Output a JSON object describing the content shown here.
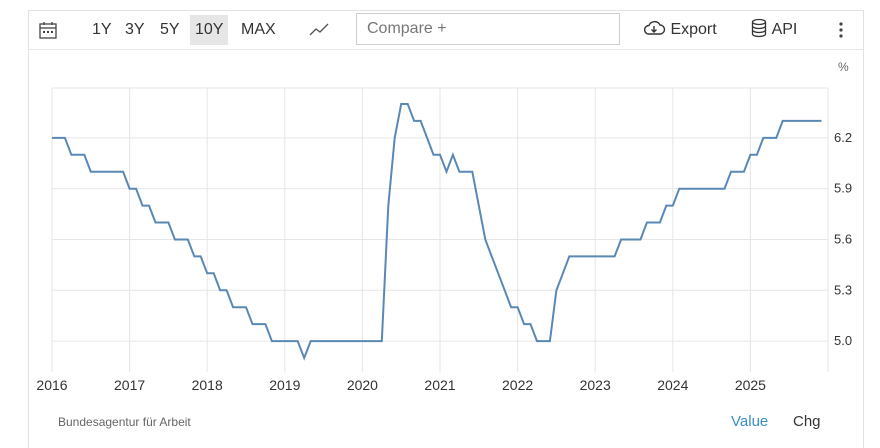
{
  "toolbar": {
    "ranges": [
      "1Y",
      "3Y",
      "5Y",
      "10Y",
      "MAX"
    ],
    "active_range": "10Y",
    "compare_placeholder": "Compare +",
    "export_label": "Export",
    "api_label": "API"
  },
  "unit": "%",
  "source": "Bundesagentur für Arbeit",
  "footer": {
    "value_label": "Value",
    "chg_label": "Chg"
  },
  "colors": {
    "line": "#5a88b5",
    "active_link": "#3a8dc8",
    "grid": "#e6e6e6"
  },
  "chart_data": {
    "type": "line",
    "title": "",
    "xlabel": "",
    "ylabel": "%",
    "x_ticks": [
      "2016",
      "2017",
      "2018",
      "2019",
      "2020",
      "2021",
      "2022",
      "2023",
      "2024",
      "2025"
    ],
    "y_ticks": [
      "5.0",
      "5.3",
      "5.6",
      "5.9",
      "6.2"
    ],
    "ylim": [
      4.85,
      6.4
    ],
    "grid": true,
    "series": [
      {
        "x": [
          "2016-01",
          "2016-03",
          "2016-04",
          "2016-06",
          "2016-07",
          "2016-08",
          "2016-09",
          "2016-10",
          "2016-11",
          "2016-12",
          "2017-01",
          "2017-02",
          "2017-03",
          "2017-04",
          "2017-05",
          "2017-06",
          "2017-07",
          "2017-08",
          "2017-09",
          "2017-10",
          "2017-11",
          "2017-12",
          "2018-01",
          "2018-02",
          "2018-03",
          "2018-04",
          "2018-05",
          "2018-06",
          "2018-07",
          "2018-08",
          "2018-09",
          "2018-10",
          "2018-11",
          "2018-12",
          "2019-01",
          "2019-02",
          "2019-03",
          "2019-04",
          "2019-05",
          "2019-06",
          "2019-07",
          "2019-08",
          "2019-09",
          "2019-10",
          "2019-11",
          "2019-12",
          "2020-01",
          "2020-02",
          "2020-03",
          "2020-04",
          "2020-05",
          "2020-06",
          "2020-07",
          "2020-08",
          "2020-09",
          "2020-10",
          "2020-11",
          "2020-12",
          "2021-01",
          "2021-02",
          "2021-03",
          "2021-04",
          "2021-05",
          "2021-06",
          "2021-07",
          "2021-08",
          "2021-09",
          "2021-10",
          "2021-11",
          "2021-12",
          "2022-01",
          "2022-02",
          "2022-03",
          "2022-04",
          "2022-05",
          "2022-06",
          "2022-07",
          "2022-08",
          "2022-09",
          "2022-10",
          "2022-11",
          "2022-12",
          "2023-01",
          "2023-02",
          "2023-03",
          "2023-04",
          "2023-05",
          "2023-06",
          "2023-07",
          "2023-08",
          "2023-09",
          "2023-10",
          "2023-11",
          "2023-12",
          "2024-01",
          "2024-02",
          "2024-03",
          "2024-04",
          "2024-05",
          "2024-06",
          "2024-07",
          "2024-08",
          "2024-09",
          "2024-10",
          "2024-11",
          "2024-12",
          "2025-01",
          "2025-02",
          "2025-03",
          "2025-04",
          "2025-05",
          "2025-06",
          "2025-07",
          "2025-08",
          "2025-09",
          "2025-10",
          "2025-11",
          "2025-12"
        ],
        "values": [
          6.2,
          6.2,
          6.1,
          6.1,
          6.0,
          6.0,
          6.0,
          6.0,
          6.0,
          6.0,
          5.9,
          5.9,
          5.8,
          5.8,
          5.7,
          5.7,
          5.7,
          5.6,
          5.6,
          5.6,
          5.5,
          5.5,
          5.4,
          5.4,
          5.3,
          5.3,
          5.2,
          5.2,
          5.2,
          5.1,
          5.1,
          5.1,
          5.0,
          5.0,
          5.0,
          5.0,
          5.0,
          4.9,
          5.0,
          5.0,
          5.0,
          5.0,
          5.0,
          5.0,
          5.0,
          5.0,
          5.0,
          5.0,
          5.0,
          5.0,
          5.8,
          6.2,
          6.4,
          6.4,
          6.3,
          6.3,
          6.2,
          6.1,
          6.1,
          6.0,
          6.1,
          6.0,
          6.0,
          6.0,
          5.8,
          5.6,
          5.5,
          5.4,
          5.3,
          5.2,
          5.2,
          5.1,
          5.1,
          5.0,
          5.0,
          5.0,
          5.3,
          5.4,
          5.5,
          5.5,
          5.5,
          5.5,
          5.5,
          5.5,
          5.5,
          5.5,
          5.6,
          5.6,
          5.6,
          5.6,
          5.7,
          5.7,
          5.7,
          5.8,
          5.8,
          5.9,
          5.9,
          5.9,
          5.9,
          5.9,
          5.9,
          5.9,
          5.9,
          6.0,
          6.0,
          6.0,
          6.1,
          6.1,
          6.2,
          6.2,
          6.2,
          6.3,
          6.3,
          6.3,
          6.3,
          6.3,
          6.3,
          6.3
        ]
      }
    ]
  }
}
